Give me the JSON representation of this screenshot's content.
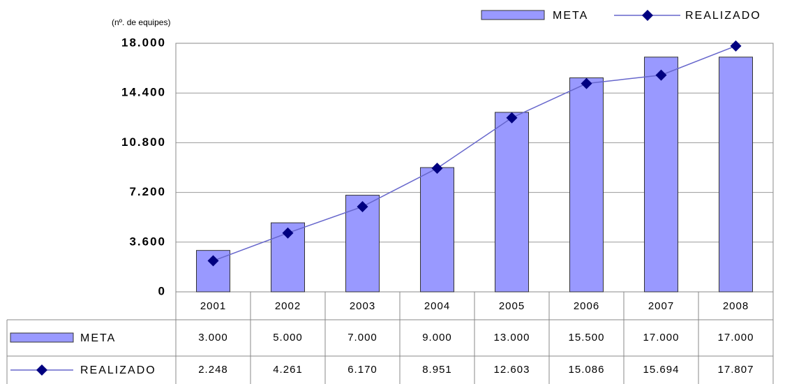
{
  "chart_data": {
    "type": "bar-line",
    "y_label": "(nº. de equipes)",
    "categories": [
      "2001",
      "2002",
      "2003",
      "2004",
      "2005",
      "2006",
      "2007",
      "2008"
    ],
    "series": [
      {
        "name": "META",
        "type": "bar",
        "color": "#9999ff",
        "values": [
          3000,
          5000,
          7000,
          9000,
          13000,
          15500,
          17000,
          17000
        ],
        "value_labels": [
          "3.000",
          "5.000",
          "7.000",
          "9.000",
          "13.000",
          "15.500",
          "17.000",
          "17.000"
        ]
      },
      {
        "name": "REALIZADO",
        "type": "line",
        "color": "#000080",
        "values": [
          2248,
          4261,
          6170,
          8951,
          12603,
          15086,
          15694,
          17807
        ],
        "value_labels": [
          "2.248",
          "4.261",
          "6.170",
          "8.951",
          "12.603",
          "15.086",
          "15.694",
          "17.807"
        ]
      }
    ],
    "ylim": [
      0,
      18000
    ],
    "yticks": [
      0,
      {
        "value": 3600,
        "label": "3.600"
      },
      {
        "value": 7200,
        "label": "7.200"
      },
      {
        "value": 10800,
        "label": "10.800"
      },
      {
        "value": 14400,
        "label": "14.400"
      },
      {
        "value": 18000,
        "label": "18.000"
      }
    ],
    "grid": true
  }
}
